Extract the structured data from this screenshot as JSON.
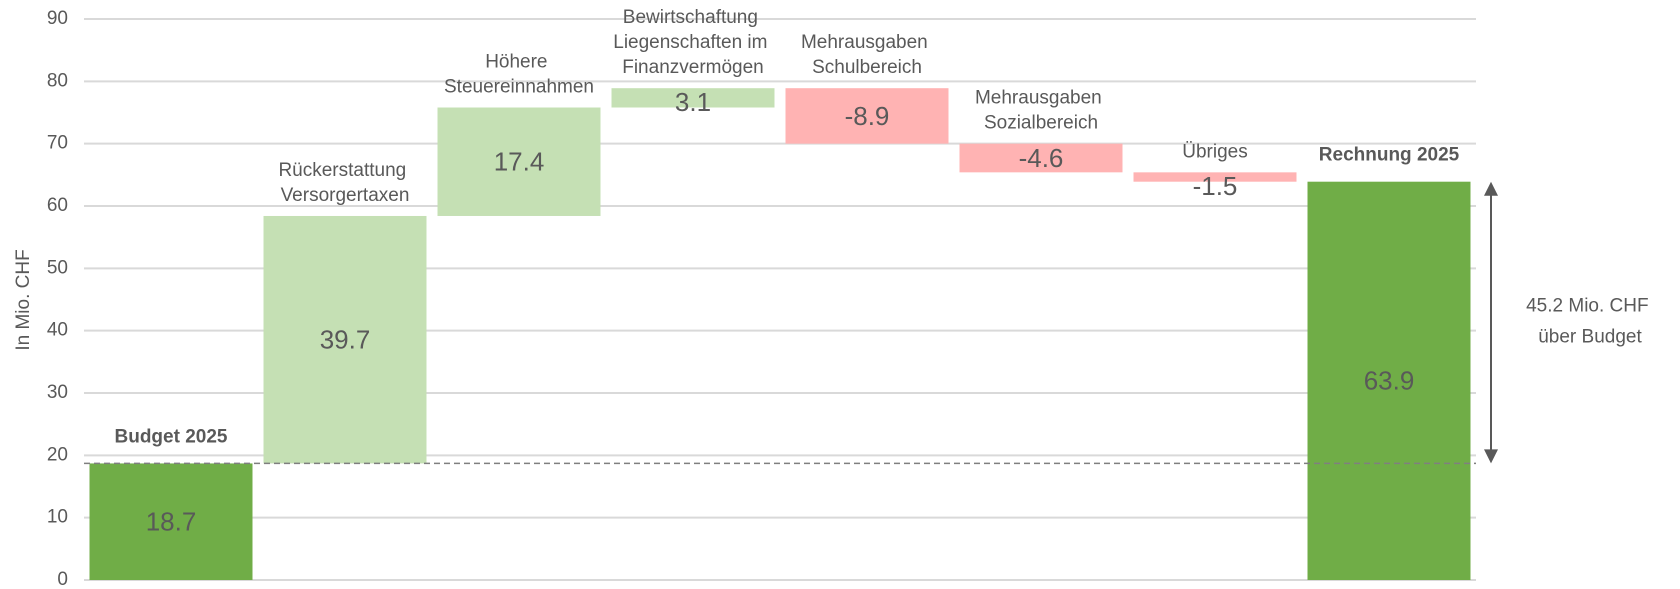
{
  "chart_data": {
    "type": "waterfall",
    "categories": [
      "Budget 2025",
      "Rückerstattung Versorgertaxen",
      "Höhere Steuereinnahmen",
      "Bewirtschaftung Liegenschaften im Finanzvermögen",
      "Mehrausgaben Schulbereich",
      "Mehrausgaben Sozialbereich",
      "Übriges",
      "Rechnung 2025"
    ],
    "values": [
      18.7,
      39.7,
      17.4,
      3.1,
      -8.9,
      -4.6,
      -1.5,
      63.9
    ],
    "totals": [
      0,
      7
    ],
    "colors": [
      "#70ad47",
      "#c5e0b4",
      "#c5e0b4",
      "#c5e0b4",
      "#ffb3b3",
      "#ffb3b3",
      "#ffb3b3",
      "#70ad47"
    ],
    "y_label": "In Mio. CHF",
    "ylim": [
      0,
      90
    ],
    "yticks": [
      0,
      10,
      20,
      30,
      40,
      50,
      60,
      70,
      80,
      90
    ],
    "grid": true,
    "annotation": "45.2 Mio. CHF über Budget"
  }
}
